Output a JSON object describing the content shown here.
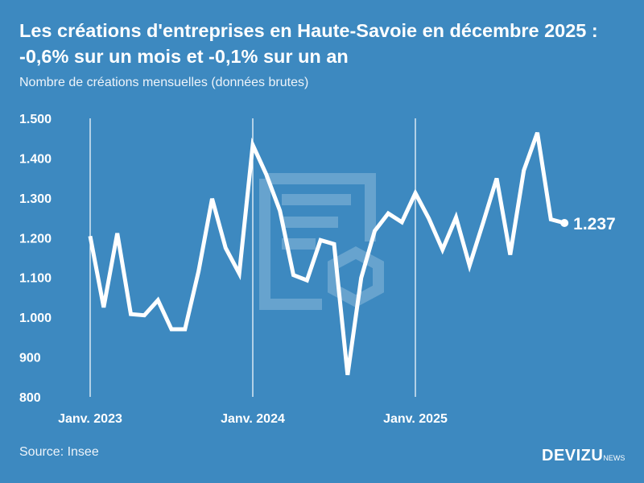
{
  "title": "Les créations d'entreprises en Haute-Savoie en décembre 2025 : -0,6% sur un mois et -0,1% sur un an",
  "subtitle": "Nombre de créations mensuelles (données brutes)",
  "source": "Source: Insee",
  "logo": {
    "main": "DEVIZU",
    "suffix": "NEWS"
  },
  "colors": {
    "background": "#3d89c0",
    "line": "#ffffff"
  },
  "chart_data": {
    "type": "line",
    "xlabel": "",
    "ylabel": "",
    "ylim": [
      800,
      1500
    ],
    "yticks": [
      800,
      900,
      1000,
      1100,
      1200,
      1300,
      1400,
      1500
    ],
    "ytick_labels": [
      "800",
      "900",
      "1.000",
      "1.100",
      "1.200",
      "1.300",
      "1.400",
      "1.500"
    ],
    "xtick_labels": [
      {
        "label": "Janv. 2023",
        "index": 0
      },
      {
        "label": "Janv. 2024",
        "index": 12
      },
      {
        "label": "Janv. 2025",
        "index": 24
      }
    ],
    "x_start": "2023-01",
    "x_end": "2025-12",
    "grid": "vertical lines at January",
    "values": [
      1204,
      1025,
      1211,
      1008,
      1005,
      1043,
      970,
      970,
      1116,
      1298,
      1174,
      1110,
      1433,
      1359,
      1268,
      1106,
      1093,
      1194,
      1184,
      855,
      1099,
      1217,
      1261,
      1239,
      1312,
      1248,
      1170,
      1251,
      1130,
      1238,
      1349,
      1157,
      1369,
      1464,
      1246,
      1237
    ],
    "last_label": "1.237"
  }
}
